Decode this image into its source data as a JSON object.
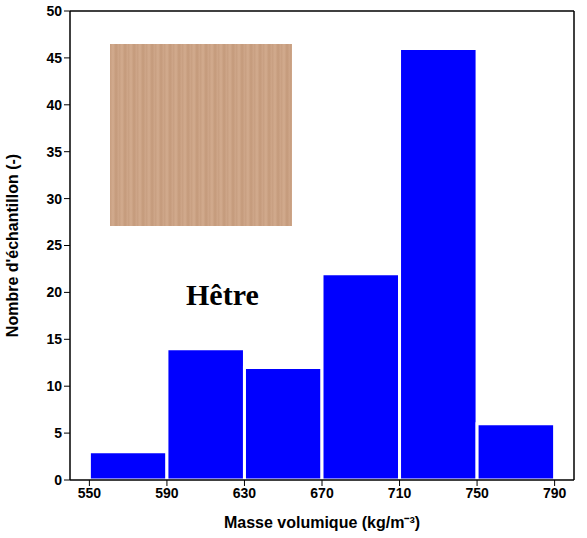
{
  "chart_data": {
    "type": "histogram",
    "title": "Hêtre",
    "xlabel": "Masse volumique (kg/m⁻³)",
    "ylabel": "Nombre d'échantillon (-)",
    "bins": [
      550,
      590,
      630,
      670,
      710,
      750,
      790
    ],
    "values": [
      3,
      14,
      12,
      22,
      46,
      6
    ],
    "color": "#0000ff",
    "xlim": [
      540,
      800
    ],
    "xticks": [
      550,
      590,
      630,
      670,
      710,
      750,
      790
    ],
    "ylim": [
      0,
      50
    ],
    "yticks": [
      0,
      5,
      10,
      15,
      20,
      25,
      30,
      35,
      40,
      45,
      50
    ],
    "grid": false
  }
}
